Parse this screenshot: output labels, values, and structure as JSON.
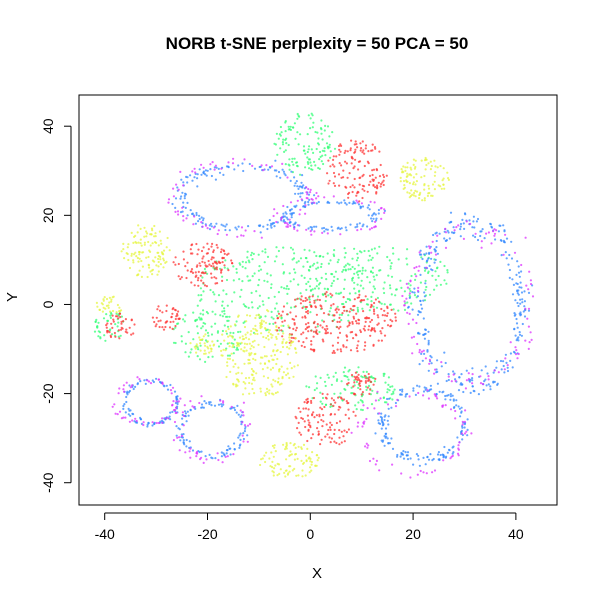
{
  "chart_data": {
    "type": "scatter",
    "title": "NORB t-SNE perplexity = 50 PCA = 50",
    "xlabel": "X",
    "ylabel": "Y",
    "xlim": [
      -45,
      48
    ],
    "ylim": [
      -45,
      47
    ],
    "xticks": [
      -40,
      -20,
      0,
      20,
      40
    ],
    "yticks": [
      -40,
      -20,
      0,
      20,
      40
    ],
    "xtick_labels": [
      "-40",
      "-20",
      "0",
      "20",
      "40"
    ],
    "ytick_labels": [
      "-40",
      "-20",
      "0",
      "20",
      "40"
    ],
    "grid": false,
    "legend": "none",
    "colors": {
      "red": "#ff3333",
      "yellow": "#e6f542",
      "green": "#33ff77",
      "blue": "#3388ff",
      "magenta": "#dd33ff"
    },
    "clusters": [
      {
        "color": "green",
        "shape": "blob",
        "cx": -5,
        "cy": 3,
        "rx": 18,
        "ry": 10,
        "n": 260
      },
      {
        "color": "green",
        "shape": "blob",
        "cx": -1,
        "cy": 36,
        "rx": 6,
        "ry": 7,
        "n": 120
      },
      {
        "color": "green",
        "shape": "blob",
        "cx": 8,
        "cy": -19,
        "rx": 9,
        "ry": 5,
        "n": 110
      },
      {
        "color": "green",
        "shape": "blob",
        "cx": -20,
        "cy": -7,
        "rx": 7,
        "ry": 6,
        "n": 90
      },
      {
        "color": "green",
        "shape": "blob",
        "cx": -39,
        "cy": -5,
        "rx": 3,
        "ry": 4,
        "n": 40
      },
      {
        "color": "green",
        "shape": "blob",
        "cx": 13,
        "cy": 6,
        "rx": 14,
        "ry": 8,
        "n": 180
      },
      {
        "color": "red",
        "shape": "blob",
        "cx": 5,
        "cy": -4,
        "rx": 12,
        "ry": 7,
        "n": 260
      },
      {
        "color": "red",
        "shape": "blob",
        "cx": 9,
        "cy": 30,
        "rx": 6,
        "ry": 7,
        "n": 130
      },
      {
        "color": "red",
        "shape": "blob",
        "cx": -21,
        "cy": 9,
        "rx": 6,
        "ry": 5,
        "n": 110
      },
      {
        "color": "red",
        "shape": "blob",
        "cx": 3,
        "cy": -26,
        "rx": 6,
        "ry": 6,
        "n": 110
      },
      {
        "color": "red",
        "shape": "blob",
        "cx": -37,
        "cy": -5,
        "rx": 3,
        "ry": 3,
        "n": 40
      },
      {
        "color": "red",
        "shape": "blob",
        "cx": -28,
        "cy": -3,
        "rx": 3,
        "ry": 3,
        "n": 40
      },
      {
        "color": "red",
        "shape": "blob",
        "cx": 10,
        "cy": -18,
        "rx": 3,
        "ry": 3,
        "n": 40
      },
      {
        "color": "yellow",
        "shape": "blob",
        "cx": -10,
        "cy": -11,
        "rx": 8,
        "ry": 10,
        "n": 240
      },
      {
        "color": "yellow",
        "shape": "blob",
        "cx": -32,
        "cy": 12,
        "rx": 5,
        "ry": 6,
        "n": 110
      },
      {
        "color": "yellow",
        "shape": "blob",
        "cx": 22,
        "cy": 28,
        "rx": 5,
        "ry": 5,
        "n": 100
      },
      {
        "color": "yellow",
        "shape": "blob",
        "cx": -4,
        "cy": -35,
        "rx": 6,
        "ry": 4,
        "n": 90
      },
      {
        "color": "yellow",
        "shape": "blob",
        "cx": -39,
        "cy": 0,
        "rx": 3,
        "ry": 2,
        "n": 30
      },
      {
        "color": "yellow",
        "shape": "blob",
        "cx": -21,
        "cy": -9,
        "rx": 2.5,
        "ry": 2.5,
        "n": 30
      },
      {
        "color": "blue",
        "shape": "ring",
        "cx": 31,
        "cy": 0,
        "rx": 10,
        "ry": 18,
        "n": 280
      },
      {
        "color": "magenta",
        "shape": "ring",
        "cx": 31,
        "cy": 0,
        "rx": 12,
        "ry": 17,
        "n": 110
      },
      {
        "color": "blue",
        "shape": "ring",
        "cx": -13,
        "cy": 24,
        "rx": 12,
        "ry": 7,
        "n": 170
      },
      {
        "color": "magenta",
        "shape": "ring",
        "cx": -13,
        "cy": 24,
        "rx": 13,
        "ry": 8,
        "n": 70
      },
      {
        "color": "blue",
        "shape": "ring",
        "cx": 22,
        "cy": -27,
        "rx": 8,
        "ry": 8,
        "n": 160
      },
      {
        "color": "magenta",
        "shape": "ring",
        "cx": 20,
        "cy": -29,
        "rx": 10,
        "ry": 9,
        "n": 70
      },
      {
        "color": "blue",
        "shape": "ring",
        "cx": -31,
        "cy": -22,
        "rx": 5,
        "ry": 5,
        "n": 90
      },
      {
        "color": "magenta",
        "shape": "ring",
        "cx": -32,
        "cy": -22,
        "rx": 6,
        "ry": 5,
        "n": 50
      },
      {
        "color": "blue",
        "shape": "ring",
        "cx": -19,
        "cy": -28,
        "rx": 6,
        "ry": 6,
        "n": 100
      },
      {
        "color": "magenta",
        "shape": "ring",
        "cx": -19,
        "cy": -28,
        "rx": 7,
        "ry": 7,
        "n": 50
      },
      {
        "color": "blue",
        "shape": "ring",
        "cx": 4,
        "cy": 20,
        "rx": 9,
        "ry": 3,
        "n": 90
      },
      {
        "color": "magenta",
        "shape": "ring",
        "cx": 4,
        "cy": 20,
        "rx": 10,
        "ry": 4,
        "n": 50
      }
    ]
  }
}
